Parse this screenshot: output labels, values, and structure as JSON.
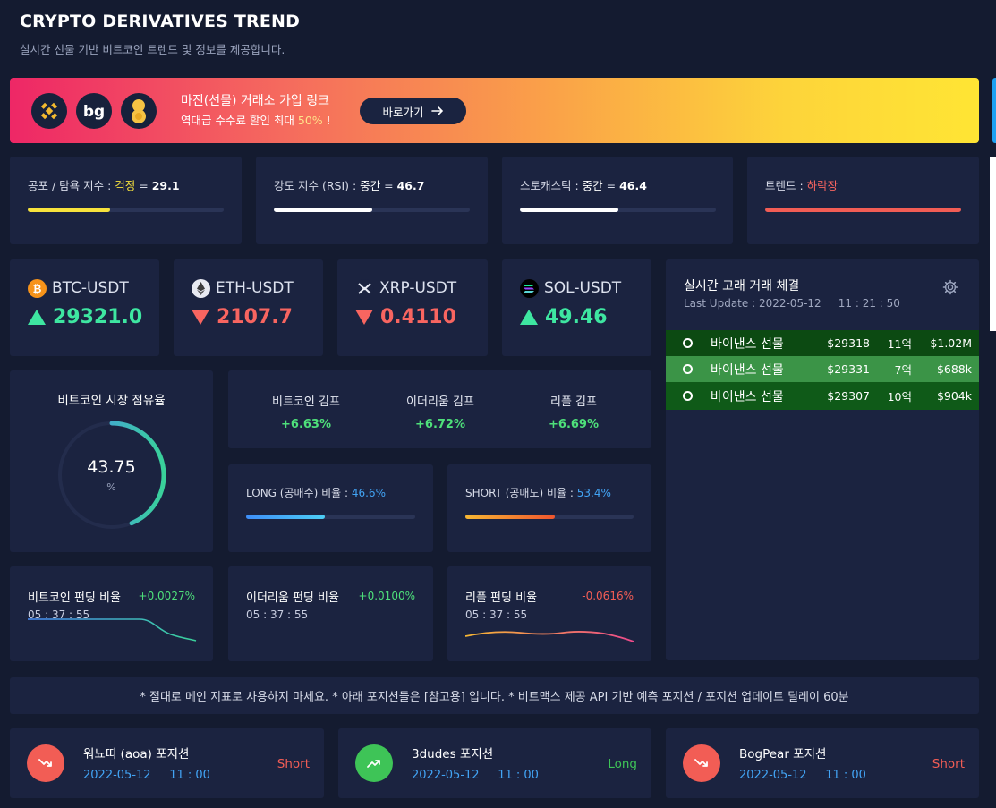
{
  "header": {
    "title": "CRYPTO DERIVATIVES TREND",
    "subtitle": "실시간 선물 기반 비트코인 트렌드 및 정보를 제공합니다."
  },
  "banner": {
    "line1": "마진(선물) 거래소 가입 링크",
    "line2_prefix": "역대급 수수료 할인 최대 ",
    "line2_highlight": "50%",
    "line2_suffix": " !",
    "button_label": "바로가기",
    "logos": [
      "binance-logo",
      "bitget-logo",
      "bybit-logo"
    ]
  },
  "indicators": [
    {
      "label": "공포 / 탐욕 지수 : ",
      "state": "걱정",
      "eq": " = ",
      "value": "29.1",
      "fill_pct": 42,
      "color": "#f7e23c",
      "state_color": "#f7e23c"
    },
    {
      "label": "강도 지수 (RSI) : ",
      "state": "중간",
      "eq": " = ",
      "value": "46.7",
      "fill_pct": 50,
      "color": "#ffffff",
      "state_color": "#ffffff"
    },
    {
      "label": "스토캐스틱 : ",
      "state": "중간",
      "eq": " = ",
      "value": "46.4",
      "fill_pct": 50,
      "color": "#ffffff",
      "state_color": "#ffffff"
    },
    {
      "label": "트렌드 : ",
      "state": "하락장",
      "eq": "",
      "value": "",
      "fill_pct": 100,
      "color": "#f25d55",
      "state_color": "#f86560"
    }
  ],
  "tickers": [
    {
      "symbol": "BTC-USDT",
      "price": "29321.0",
      "direction": "up",
      "icon": "bitcoin-icon"
    },
    {
      "symbol": "ETH-USDT",
      "price": "2107.7",
      "direction": "down",
      "icon": "ethereum-icon"
    },
    {
      "symbol": "XRP-USDT",
      "price": "0.4110",
      "direction": "down",
      "icon": "xrp-icon"
    },
    {
      "symbol": "SOL-USDT",
      "price": "49.46",
      "direction": "up",
      "icon": "solana-icon"
    }
  ],
  "whale": {
    "title": "실시간 고래 거래 체결",
    "last_update": "Last Update : 2022-05-12     11 : 21 : 50",
    "rows": [
      {
        "exchange": "바이낸스 선물",
        "price": "$29318",
        "qty": "11억",
        "value": "$1.02M",
        "bg": "#0c4a12"
      },
      {
        "exchange": "바이낸스 선물",
        "price": "$29331",
        "qty": "7억",
        "value": "$688k",
        "bg": "#3b9447"
      },
      {
        "exchange": "바이낸스 선물",
        "price": "$29307",
        "qty": "10억",
        "value": "$904k",
        "bg": "#0f5a18"
      }
    ]
  },
  "dominance": {
    "title": "비트코인 시장 점유율",
    "value": "43.75",
    "unit": "%",
    "fraction": 0.4375
  },
  "kimp": [
    {
      "label": "비트코인 김프",
      "value": "+6.63%"
    },
    {
      "label": "이더리움 김프",
      "value": "+6.72%"
    },
    {
      "label": "리플 김프",
      "value": "+6.69%"
    }
  ],
  "ratios": {
    "long": {
      "label": "LONG (공매수) 비율 : ",
      "value": "46.6%",
      "fraction": 0.466
    },
    "short": {
      "label": "SHORT (공매도) 비율 : ",
      "value": "53.4%",
      "fraction": 0.534
    }
  },
  "funding": [
    {
      "title": "비트코인 펀딩 비율",
      "value": "+0.0027%",
      "time": "05 : 37 : 55",
      "color": "#4ee07a"
    },
    {
      "title": "이더리움 펀딩 비율",
      "value": "+0.0100%",
      "time": "05 : 37 : 55",
      "color": "#4ee07a"
    },
    {
      "title": "리플 펀딩 비율",
      "value": "-0.0616%",
      "time": "05 : 37 : 55",
      "color": "#f25d55"
    }
  ],
  "notice": "* 절대로 메인 지표로 사용하지 마세요. * 아래 포지션들은 [참고용] 입니다. * 비트맥스 제공 API 기반 예측 포지션 / 포지션 업데이트 딜레이 60분",
  "positions": [
    {
      "name": "워뇨띠 (aoa) 포지션",
      "time": "2022-05-12     11 : 00",
      "side": "Short",
      "color": "#f25d55"
    },
    {
      "name": "3dudes 포지션",
      "time": "2022-05-12     11 : 00",
      "side": "Long",
      "color": "#3ec457"
    },
    {
      "name": "BogPear 포지션",
      "time": "2022-05-12     11 : 00",
      "side": "Short",
      "color": "#f25d55"
    }
  ]
}
